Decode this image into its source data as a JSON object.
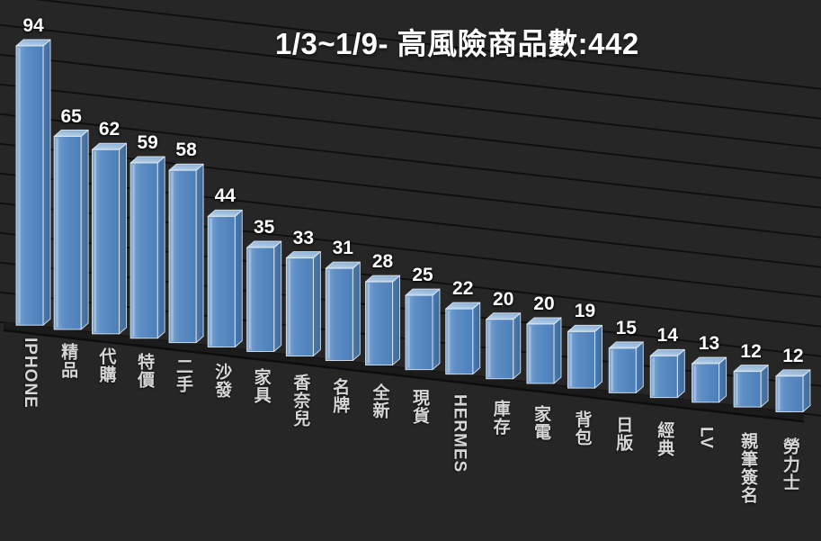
{
  "title": "1/3~1/9- 高風險商品數:442",
  "colors": {
    "background": "#262626",
    "gridline": "#0e0e0e",
    "floor": "#1b1b1b",
    "floor_edge": "#0d0d0d",
    "bar_front_light": "#84abd6",
    "bar_front": "#5e8ec5",
    "bar_front_dark": "#4c7fb9",
    "bar_top_light": "#bdd4e9",
    "bar_top": "#8fb2d8",
    "bar_side_light": "#4d7aab",
    "bar_side": "#3d699b",
    "bar_edge": "#e6eef6",
    "title_text": "#ffffff",
    "value_text": "#ffffff",
    "category_text": "#d6d6d6"
  },
  "chart_data": {
    "type": "bar",
    "projection": "3d-perspective",
    "title": "1/3~1/9- 高風險商品數:442",
    "categories": [
      "IPHONE",
      "精品",
      "代購",
      "特價",
      "二手",
      "沙發",
      "家具",
      "香奈兒",
      "名牌",
      "全新",
      "現貨",
      "HERMES",
      "庫存",
      "家電",
      "背包",
      "日版",
      "經典",
      "LV",
      "親筆簽名",
      "勞力士"
    ],
    "values": [
      94,
      65,
      62,
      59,
      58,
      44,
      35,
      33,
      31,
      28,
      25,
      22,
      20,
      20,
      19,
      15,
      14,
      13,
      12,
      12
    ],
    "xlabel": "",
    "ylabel": "",
    "ylim": [
      0,
      100
    ],
    "gridline_step": 10,
    "grid": true,
    "legend": "none",
    "value_labels": "above-bars",
    "category_label_orientation": "vertical"
  }
}
